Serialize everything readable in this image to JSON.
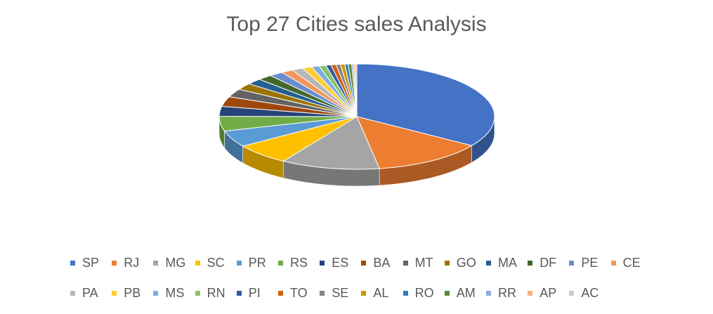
{
  "chart_data": {
    "type": "pie",
    "title": "Top 27 Cities sales Analysis",
    "style": "3d",
    "categories": [
      "SP",
      "RJ",
      "MG",
      "SC",
      "PR",
      "RS",
      "ES",
      "BA",
      "MT",
      "GO",
      "MA",
      "DF",
      "PE",
      "CE",
      "PA",
      "PB",
      "MS",
      "RN",
      "PI",
      "TO",
      "SE",
      "AL",
      "RO",
      "AM",
      "RR",
      "AP",
      "AC"
    ],
    "values": [
      34.0,
      13.0,
      11.5,
      6.5,
      5.0,
      4.5,
      3.0,
      3.0,
      2.5,
      2.0,
      1.8,
      1.7,
      1.6,
      1.4,
      1.3,
      1.1,
      0.9,
      0.8,
      0.6,
      0.6,
      0.5,
      0.5,
      0.4,
      0.4,
      0.2,
      0.2,
      0.2
    ],
    "colors": [
      "#4472C4",
      "#ED7D31",
      "#A5A5A5",
      "#FFC000",
      "#5B9BD5",
      "#70AD47",
      "#264478",
      "#9E480E",
      "#636363",
      "#997300",
      "#255E91",
      "#43682B",
      "#698ED0",
      "#F1975A",
      "#B7B7B7",
      "#FFCD33",
      "#7CAFDD",
      "#8CC168",
      "#335AA1",
      "#D26012",
      "#848484",
      "#CC9A00",
      "#327DC2",
      "#5A8A39",
      "#8FAADC",
      "#F4B183",
      "#C9C9C9"
    ],
    "legend": "bottom"
  }
}
